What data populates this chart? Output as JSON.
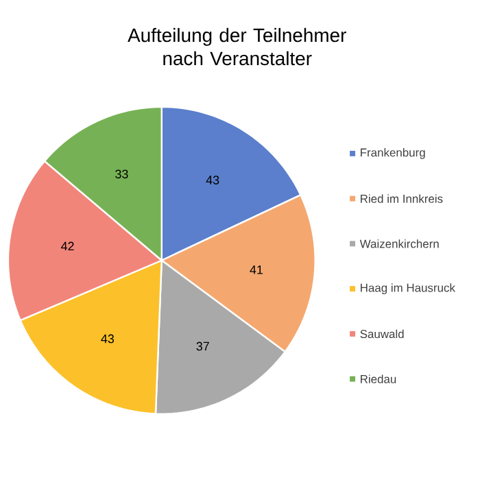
{
  "chart_data": {
    "type": "pie",
    "title": "Aufteilung der Teilnehmer nach Veranstalter",
    "categories": [
      "Frankenburg",
      "Ried im Innkreis",
      "Waizenkirchern",
      "Haag im Hausruck",
      "Sauwald",
      "Riedau"
    ],
    "values": [
      43,
      41,
      37,
      43,
      42,
      33
    ],
    "colors": [
      "#5b7fcc",
      "#f4a870",
      "#a9a9a9",
      "#fcc12a",
      "#f2857a",
      "#76b255"
    ],
    "data_labels": true,
    "legend": "right"
  }
}
